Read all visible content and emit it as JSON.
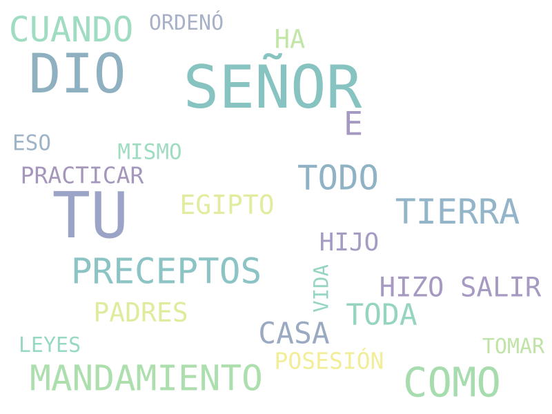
{
  "words": [
    {
      "text": "SEÑOR",
      "color": "#87c3c0"
    },
    {
      "text": "TU",
      "color": "#9ba4c6"
    },
    {
      "text": "DIO",
      "color": "#8fb0c1"
    },
    {
      "text": "COMO",
      "color": "#a7dcae"
    },
    {
      "text": "MANDAMIENTO",
      "color": "#addfae"
    },
    {
      "text": "PRECEPTOS",
      "color": "#8cc4c5"
    },
    {
      "text": "TIERRA",
      "color": "#93b5c9"
    },
    {
      "text": "CUANDO",
      "color": "#9fdcc1"
    },
    {
      "text": "TODO",
      "color": "#8fb2c4"
    },
    {
      "text": "HIZO SALIR",
      "color": "#a69ac2"
    },
    {
      "text": "CASA",
      "color": "#9aaac2"
    },
    {
      "text": "TODA",
      "color": "#95d4c0"
    },
    {
      "text": "EGIPTO",
      "color": "#e3ec9e"
    },
    {
      "text": "PADRES",
      "color": "#e0eb9e"
    },
    {
      "text": "E",
      "color": "#a599c3"
    },
    {
      "text": "HIJO",
      "color": "#a59bc3"
    },
    {
      "text": "PRACTICAR",
      "color": "#a596bc"
    },
    {
      "text": "POSESIÓN",
      "color": "#f2ed97"
    },
    {
      "text": "HA",
      "color": "#c1e6a6"
    },
    {
      "text": "ORDENÓ",
      "color": "#a8b1c8"
    },
    {
      "text": "MISMO",
      "color": "#9fdcc0"
    },
    {
      "text": "VIDA",
      "color": "#96d4c4"
    },
    {
      "text": "LEYES",
      "color": "#97d9c0"
    },
    {
      "text": "TOMAR",
      "color": "#c0e3a8"
    },
    {
      "text": "ESO",
      "color": "#9fb4c6"
    }
  ]
}
